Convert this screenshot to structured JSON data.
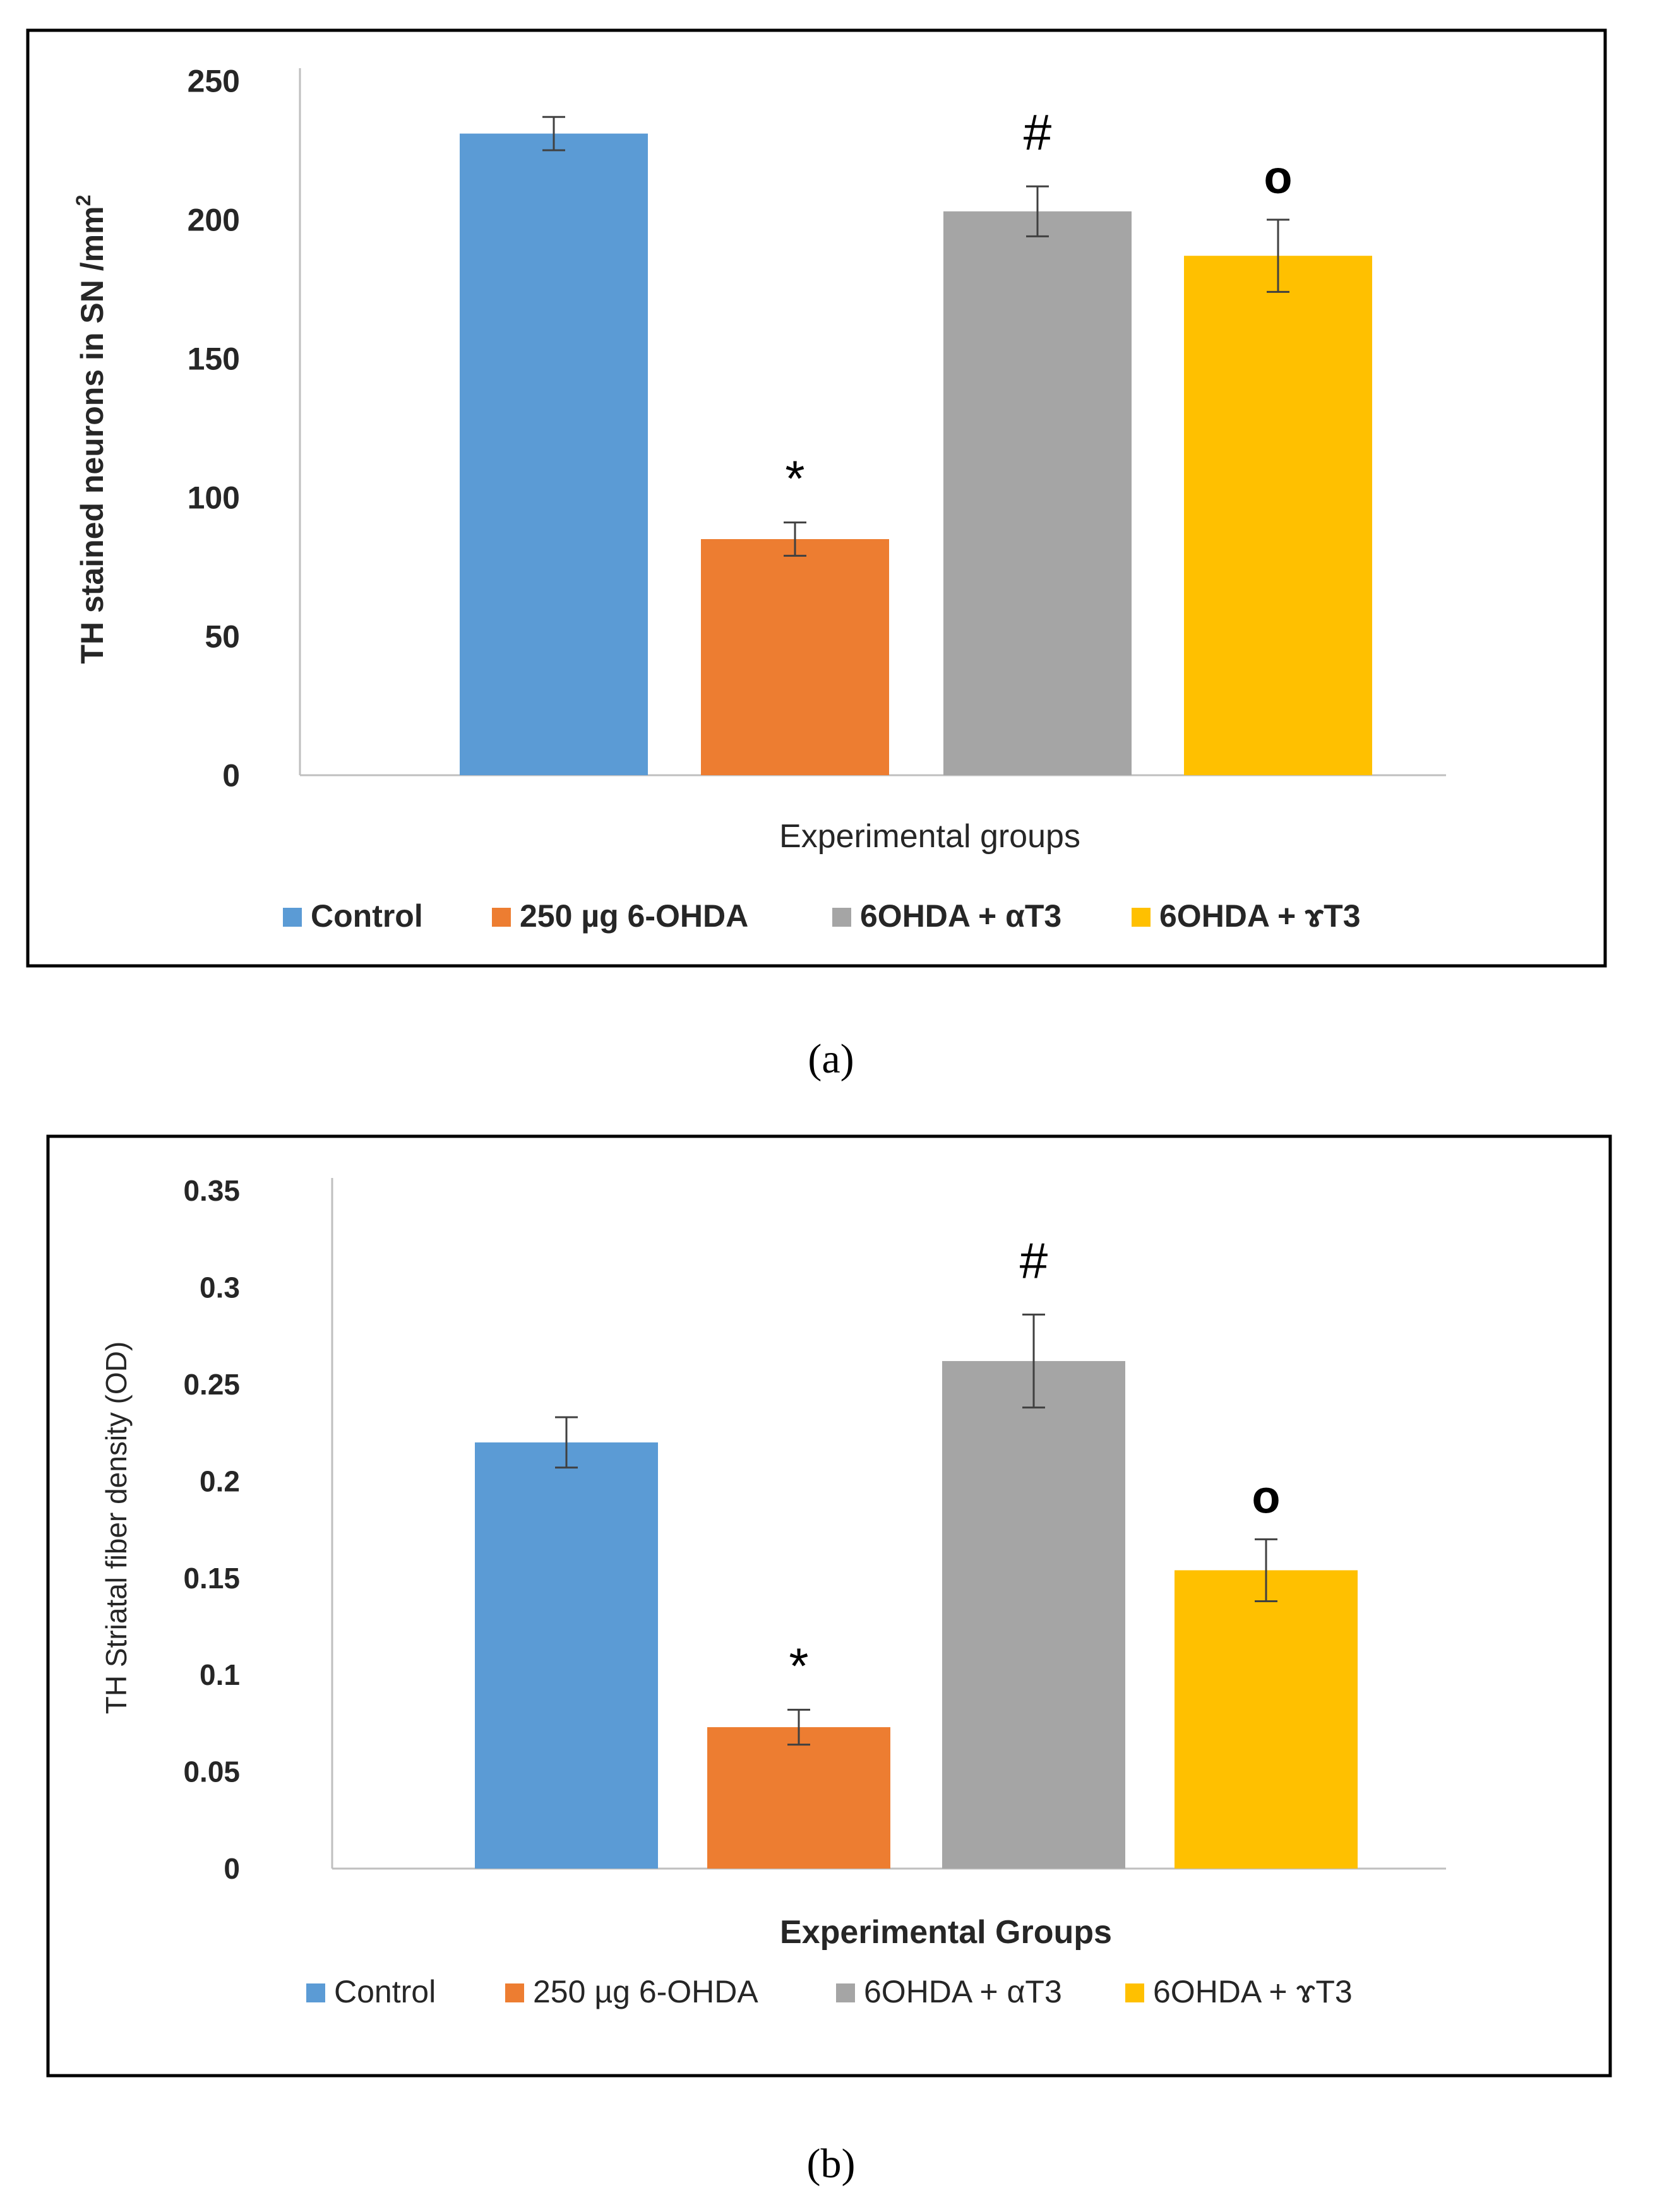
{
  "chart_data": [
    {
      "type": "bar",
      "panel_label": "a",
      "title": "",
      "xlabel": "Experimental groups",
      "ylabel_main": "TH stained neurons in SN /mm",
      "ylabel_sup": "2",
      "ylim": [
        0,
        250
      ],
      "yticks": [
        0,
        50,
        100,
        150,
        200,
        250
      ],
      "ytick_labels": [
        "0",
        "50",
        "100",
        "150",
        "200",
        "250"
      ],
      "categories": [
        "Control",
        "250 µg 6-OHDA",
        "6OHDA + αT3",
        "6OHDA + ɤT3"
      ],
      "values": [
        231,
        85,
        203,
        187
      ],
      "errors": [
        6,
        6,
        9,
        13
      ],
      "significance": [
        "",
        "*",
        "#",
        "o"
      ],
      "colors": [
        "#5b9bd5",
        "#ed7d31",
        "#a5a5a5",
        "#ffc000"
      ],
      "legend_position": "bottom",
      "grid": false
    },
    {
      "type": "bar",
      "panel_label": "b",
      "title": "",
      "xlabel": "Experimental Groups",
      "ylabel_main": "TH Striatal fiber density (OD)",
      "ylabel_sup": "",
      "ylim": [
        0,
        0.35
      ],
      "yticks": [
        0,
        0.05,
        0.1,
        0.15,
        0.2,
        0.25,
        0.3,
        0.35
      ],
      "ytick_labels": [
        "0",
        "0.05",
        "0.1",
        "0.15",
        "0.2",
        "0.25",
        "0.3",
        "0.35"
      ],
      "categories": [
        "Control",
        "250 µg 6-OHDA",
        "6OHDA + αT3",
        "6OHDA + ɤT3"
      ],
      "values": [
        0.22,
        0.073,
        0.262,
        0.154
      ],
      "errors": [
        0.013,
        0.009,
        0.024,
        0.016
      ],
      "significance": [
        "",
        "*",
        "#",
        "o"
      ],
      "colors": [
        "#5b9bd5",
        "#ed7d31",
        "#a5a5a5",
        "#ffc000"
      ],
      "legend_position": "bottom",
      "grid": false
    }
  ],
  "captions": {
    "a": "(a)",
    "b": "(b)"
  }
}
